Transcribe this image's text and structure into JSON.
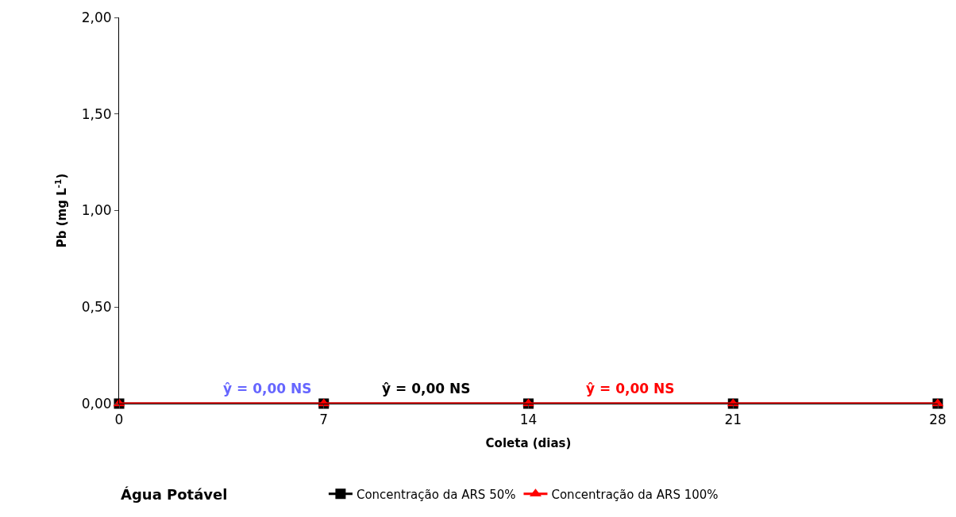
{
  "chart_data": {
    "type": "line",
    "xlabel": "Coleta (dias)",
    "ylabel": "Pb (mg L$^{-1}$)",
    "x": [
      0,
      7,
      14,
      21,
      28
    ],
    "xlim": [
      0,
      28
    ],
    "xticks": [
      0,
      7,
      14,
      21,
      28
    ],
    "ylim": [
      0,
      2
    ],
    "yticks": [
      {
        "value": 0,
        "label": "0,00"
      },
      {
        "value": 0.5,
        "label": "0,50"
      },
      {
        "value": 1,
        "label": "1,00"
      },
      {
        "value": 1.5,
        "label": "1,50"
      },
      {
        "value": 2,
        "label": "2,00"
      }
    ],
    "legend": "bottom",
    "legend_title": "Água Potável",
    "series": [
      {
        "name": "Concentração da ARS 50%",
        "color": "#000000",
        "marker": "square",
        "values": [
          0,
          0,
          0,
          0,
          0
        ]
      },
      {
        "name": "Concentração da ARS 100%",
        "color": "#ff0000",
        "marker": "triangle",
        "values": [
          0,
          0,
          0,
          0,
          0
        ]
      }
    ],
    "annotations": [
      "ŷ = 0,00 NS",
      "ŷ = 0,00 NS",
      "ŷ = 0,00 NS"
    ]
  }
}
